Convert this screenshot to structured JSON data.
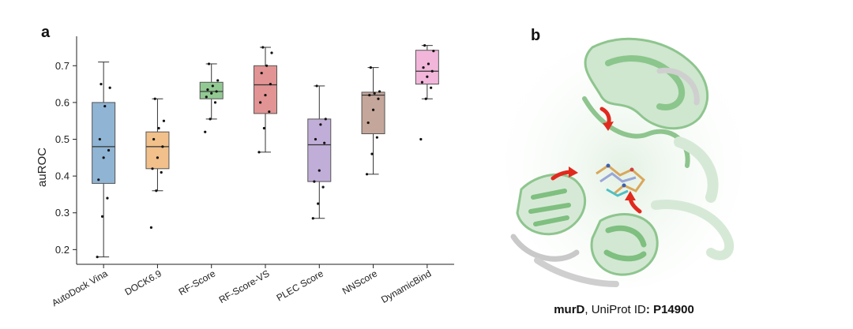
{
  "panels": {
    "a": "a",
    "b": "b"
  },
  "chart_data": {
    "type": "box",
    "title": "",
    "xlabel": "",
    "ylabel": "auROC",
    "ylim": [
      0.16,
      0.78
    ],
    "yticks": [
      0.2,
      0.3,
      0.4,
      0.5,
      0.6,
      0.7
    ],
    "grid": false,
    "categories": [
      "AutoDock Vina",
      "DOCK6.9",
      "RF-Score",
      "RF-Score-VS",
      "PLEC Score",
      "NNScore",
      "DynamicBind"
    ],
    "colors": [
      "#8fb4d4",
      "#f2c08a",
      "#92c993",
      "#e29393",
      "#c1aed8",
      "#c4a69a",
      "#f1b6da"
    ],
    "boxes": [
      {
        "whisker_low": 0.18,
        "q1": 0.38,
        "median": 0.48,
        "q3": 0.6,
        "whisker_high": 0.71,
        "points": [
          0.18,
          0.29,
          0.34,
          0.39,
          0.45,
          0.47,
          0.5,
          0.59,
          0.64,
          0.65
        ]
      },
      {
        "whisker_low": 0.36,
        "q1": 0.42,
        "median": 0.48,
        "q3": 0.52,
        "whisker_high": 0.61,
        "points": [
          0.26,
          0.36,
          0.41,
          0.42,
          0.45,
          0.48,
          0.5,
          0.53,
          0.55,
          0.61
        ]
      },
      {
        "whisker_low": 0.555,
        "q1": 0.61,
        "median": 0.63,
        "q3": 0.655,
        "whisker_high": 0.705,
        "points": [
          0.52,
          0.555,
          0.6,
          0.615,
          0.625,
          0.63,
          0.635,
          0.645,
          0.66,
          0.705
        ]
      },
      {
        "whisker_low": 0.465,
        "q1": 0.57,
        "median": 0.648,
        "q3": 0.7,
        "whisker_high": 0.75,
        "points": [
          0.465,
          0.53,
          0.575,
          0.6,
          0.62,
          0.65,
          0.68,
          0.7,
          0.735,
          0.75
        ]
      },
      {
        "whisker_low": 0.285,
        "q1": 0.385,
        "median": 0.485,
        "q3": 0.555,
        "whisker_high": 0.645,
        "points": [
          0.285,
          0.325,
          0.37,
          0.385,
          0.415,
          0.49,
          0.5,
          0.54,
          0.555,
          0.645
        ]
      },
      {
        "whisker_low": 0.405,
        "q1": 0.515,
        "median": 0.62,
        "q3": 0.628,
        "whisker_high": 0.695,
        "points": [
          0.405,
          0.46,
          0.505,
          0.545,
          0.58,
          0.61,
          0.62,
          0.625,
          0.63,
          0.695
        ]
      },
      {
        "whisker_low": 0.61,
        "q1": 0.65,
        "median": 0.685,
        "q3": 0.742,
        "whisker_high": 0.755,
        "points": [
          0.5,
          0.61,
          0.64,
          0.655,
          0.67,
          0.685,
          0.695,
          0.705,
          0.74,
          0.755
        ]
      }
    ]
  },
  "protein": {
    "caption_gene": "murD",
    "caption_mid": ", UniProt ID",
    "caption_id": ": P14900",
    "colors": {
      "ribbon": "#9ccf9c",
      "ribbon_pale": "#d6e9d6",
      "gray": "#d4d4d4",
      "arrow": "#e12a1e",
      "ligand": "#d9a75b"
    }
  }
}
